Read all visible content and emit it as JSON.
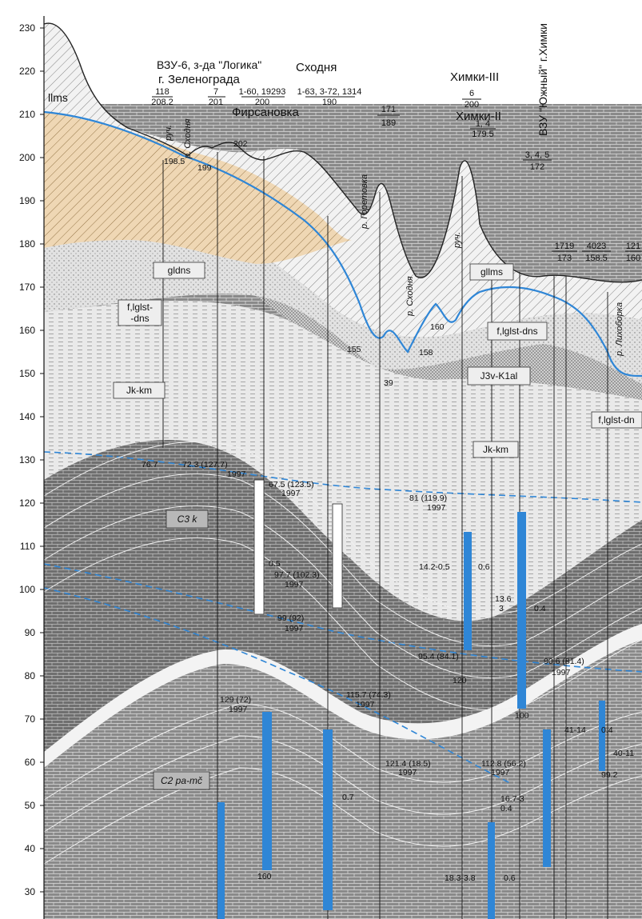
{
  "y_axis": {
    "ticks": [
      "230",
      "220",
      "210",
      "200",
      "190",
      "180",
      "170",
      "160",
      "150",
      "140",
      "130",
      "120",
      "110",
      "100",
      "90",
      "80",
      "70",
      "60",
      "50",
      "40",
      "30"
    ]
  },
  "header": {
    "vzu6_line1": "ВЗУ-6, з-да \"Логика\"",
    "vzu6_line2": "г. Зеленограда",
    "skhodnya": "Сходня",
    "firsanovka": "Фирсановка",
    "khimki3": "Химки-III",
    "khimki2": "Химки-II",
    "vzu_yuzhny": "ВЗУ \"Южный\" г.Химки"
  },
  "well_labels": {
    "w118": "118",
    "w118_b": "208.2",
    "w7": "7",
    "w7_b": "201",
    "w160": "1-60, 19293",
    "w160_b": "200",
    "w163": "1-63, 3-72, 1314",
    "w163_b": "190",
    "w171": "171",
    "w171_b": "189",
    "w6": "6",
    "w6_b": "200",
    "w14": "1, 4",
    "w14_b": "179.5",
    "w345": "3, 4, 5",
    "w345_b": "172",
    "w1719": "1719",
    "w1719_b": "173",
    "w4023": "4023",
    "w4023_b": "158.5",
    "w121": "121",
    "w121_b": "160"
  },
  "rivers": {
    "ruch1": "руч.",
    "skhodnya1": "р. Сходня",
    "goretovka": "р. Горетовка",
    "skhodnya2": "р. Сходня",
    "ruch2": "руч.",
    "likhoborka": "р. Лихоборка"
  },
  "elevation_marks": {
    "e202": "202",
    "e198": "198.5",
    "e199": "199",
    "e155": "155",
    "e158": "158",
    "e160": "160",
    "e39": "39"
  },
  "strata": {
    "llms": "llms",
    "gldns": "gldns",
    "fglst": "f,lglst-",
    "fglst2": "-dns",
    "jkkm": "Jk-km",
    "gllms": "gllms",
    "fglstdns": "f,lglst-dns",
    "j3vk": "J3v-K1al",
    "fglstdn_r": "f,lglst-dn",
    "jkkm2": "Jk-km",
    "c3k": "C3 k",
    "c2": "C2 pa-mč"
  },
  "measurements": {
    "m1": "76.7",
    "m2": "72.3 (127.7)",
    "m2b": "1997",
    "m3": "67.5 (123.5)",
    "m3b": "1997",
    "m4": "81 (119.9)",
    "m4b": "1997",
    "m5": "0.5",
    "m6": "97.7 (102.3)",
    "m6b": "1997",
    "m7": "14.2-0.5",
    "m8": "0.6",
    "m9": "13.6",
    "m9b": "3",
    "m9c": "0.4",
    "m10": "99 (92)",
    "m10b": "1997",
    "m11": "95.4 (84.1)",
    "m12": "120",
    "m13": "90.6 (81.4)",
    "m13b": "1997",
    "m14": "129 (72)",
    "m14b": "1997",
    "m15": "115.7 (74.3)",
    "m15b": "1997",
    "m16": "100",
    "m17": "41-14",
    "m18": "0.4",
    "m19": "121.4 (18.5)",
    "m19b": "1997",
    "m20": "112.8 (56.2)",
    "m20b": "1997",
    "m21": "40-11",
    "m22": "99.2",
    "m23": "16.7-3",
    "m23b": "0.4",
    "m24": "0.7",
    "m25": "160",
    "m26": "18.3-3.8",
    "m27": "0.6"
  }
}
